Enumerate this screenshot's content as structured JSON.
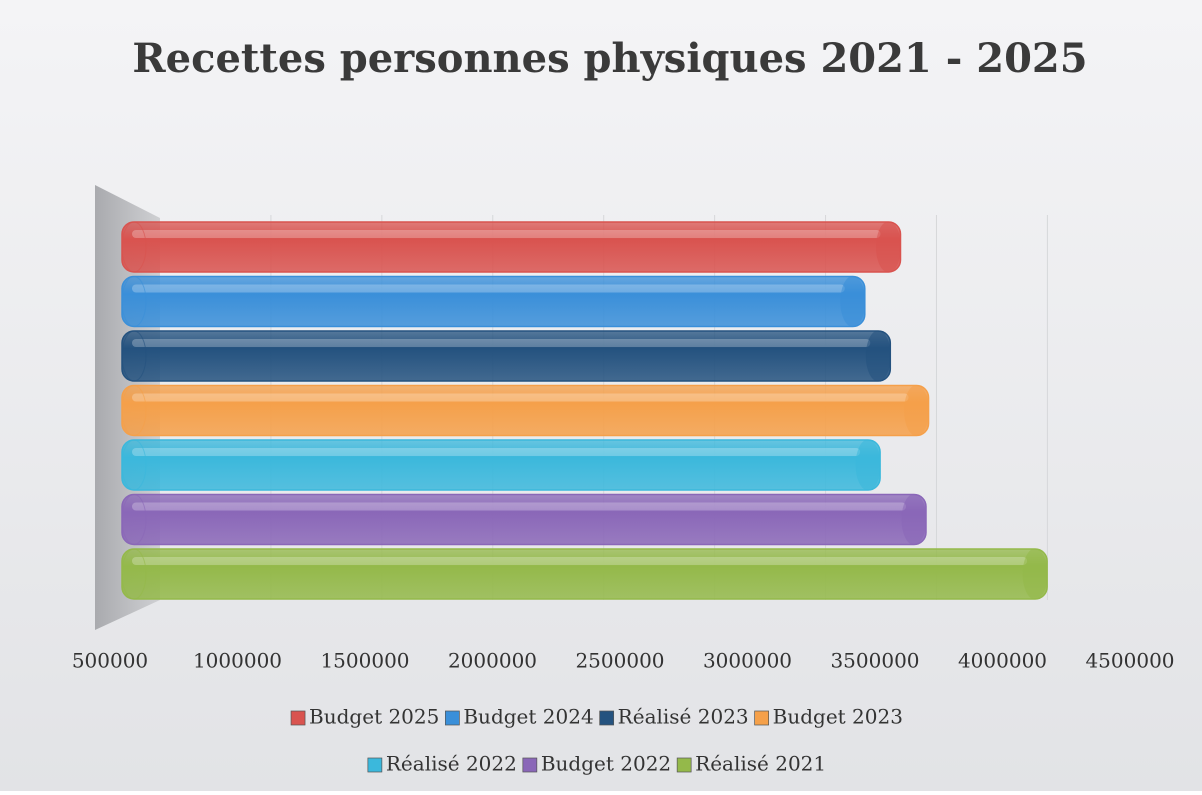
{
  "chart_data": {
    "type": "bar",
    "orientation": "horizontal",
    "title": "Recettes personnes physiques 2021 - 2025",
    "series": [
      {
        "name": "Budget 2025",
        "color": "#d9534f",
        "values": [
          3600000
        ]
      },
      {
        "name": "Budget 2024",
        "color": "#3a8fd9",
        "values": [
          3460000
        ]
      },
      {
        "name": "Réalisé 2023",
        "color": "#24527f",
        "values": [
          3560000
        ]
      },
      {
        "name": "Budget 2023",
        "color": "#f5a04a",
        "values": [
          3710000
        ]
      },
      {
        "name": "Réalisé 2022",
        "color": "#3bb8dc",
        "values": [
          3520000
        ]
      },
      {
        "name": "Budget 2022",
        "color": "#8a67b8",
        "values": [
          3700000
        ]
      },
      {
        "name": "Réalisé 2021",
        "color": "#94b94a",
        "values": [
          4175000
        ]
      }
    ],
    "xlim": [
      500000,
      4500000
    ],
    "xticks": [
      500000,
      1000000,
      1500000,
      2000000,
      2500000,
      3000000,
      3500000,
      4000000,
      4500000
    ],
    "legend": "bottom"
  }
}
